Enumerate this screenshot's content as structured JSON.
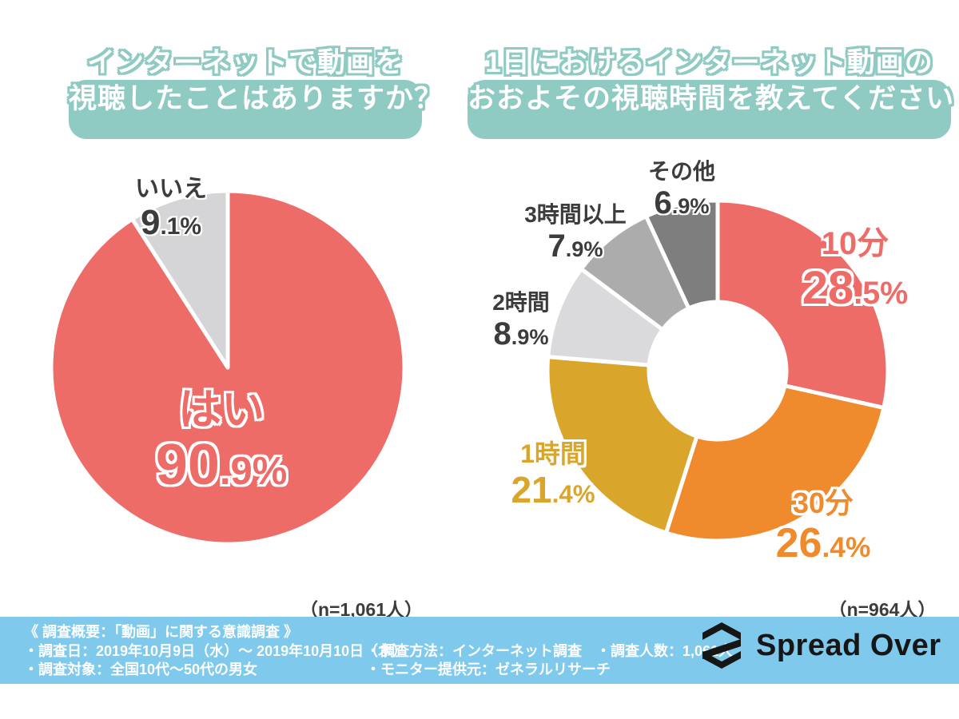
{
  "colors": {
    "red": "#ED6C68",
    "orange": "#EF8A2D",
    "gold": "#D9A62B",
    "gray_light": "#DADADC",
    "gray_mid": "#ACACAC",
    "gray_dark": "#7E7E7E",
    "gray_no_slice": "#D5D5D7",
    "teal_title": "#8FCAC3",
    "footer_blue": "#7EC9EC",
    "text_dark": "#3C3C3C"
  },
  "chart_data": [
    {
      "type": "pie",
      "title": "インターネットで動画を視聴したことはありますか？",
      "title_lines": [
        "インターネットで動画を",
        "視聴したことはありますか？"
      ],
      "categories": [
        "はい",
        "いいえ"
      ],
      "values": [
        90.9,
        9.1
      ],
      "colors": [
        "#ED6C68",
        "#D5D5D7"
      ],
      "start_angle_deg": 0,
      "direction": "clockwise",
      "n_label": "（n=1,061人）"
    },
    {
      "type": "donut",
      "title": "1日におけるインターネット動画のおおよその視聴時間を教えてください",
      "title_lines": [
        "1日におけるインターネット動画の",
        "おおよその視聴時間を教えてください"
      ],
      "categories": [
        "10分",
        "30分",
        "1時間",
        "2時間",
        "3時間以上",
        "その他"
      ],
      "values": [
        28.5,
        26.4,
        21.4,
        8.9,
        7.9,
        6.9
      ],
      "colors": [
        "#ED6C68",
        "#EF8A2D",
        "#D9A62B",
        "#DADADC",
        "#ACACAC",
        "#7E7E7E"
      ],
      "start_angle_deg": 0,
      "direction": "clockwise",
      "n_label": "（n=964人）"
    }
  ],
  "footer": {
    "col1": [
      "《 調査概要：「動画」に関する意識調査 》",
      "・調査日：2019年10月9日（水）～ 2019年10月10日（木）",
      "・調査対象：全国10代～50代の男女"
    ],
    "col2": [
      "・調査方法：インターネット調査　・調査人数：1,061人",
      "・モニター提供元：ゼネラルリサーチ"
    ],
    "brand": "Spread Over"
  }
}
